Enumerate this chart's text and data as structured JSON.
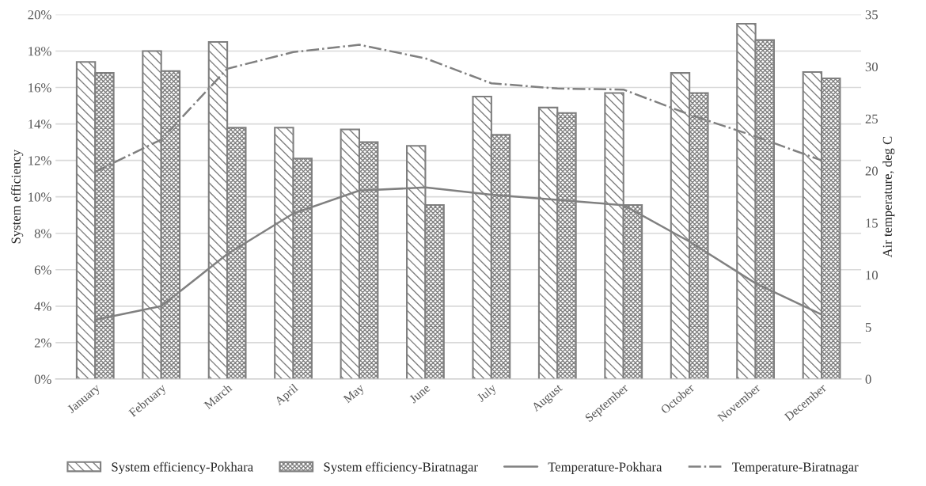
{
  "chart_data": {
    "type": "bar",
    "ylabel": "System efficiency",
    "y2label": "Air temperature, deg C",
    "categories": [
      "January",
      "February",
      "March",
      "April",
      "May",
      "June",
      "July",
      "August",
      "September",
      "October",
      "November",
      "December"
    ],
    "series": [
      {
        "name": "System efficiency-Pokhara",
        "color": "#7f7f7f",
        "values": [
          17.4,
          18.0,
          18.5,
          13.8,
          13.7,
          12.8,
          15.5,
          14.9,
          15.7,
          16.8,
          19.5,
          16.85
        ]
      },
      {
        "name": "System efficiency-Biratnagar",
        "color": "#7f7f7f",
        "values": [
          16.8,
          16.9,
          13.8,
          12.1,
          13.0,
          9.55,
          13.4,
          14.6,
          9.55,
          15.7,
          18.6,
          16.5
        ]
      },
      {
        "name": "Temperature-Pokhara",
        "type": "line",
        "axis": "y2",
        "color": "#808080",
        "line_style": "solid",
        "values": [
          5.7,
          7.0,
          12.0,
          15.9,
          18.1,
          18.4,
          17.7,
          17.2,
          16.7,
          13.2,
          9.2,
          6.2
        ]
      },
      {
        "name": "Temperature-Biratnagar",
        "type": "line",
        "axis": "y2",
        "color": "#808080",
        "line_style": "dashdot",
        "values": [
          19.9,
          23.0,
          29.8,
          31.4,
          32.1,
          30.8,
          28.4,
          27.9,
          27.8,
          25.4,
          23.3,
          21.0
        ]
      }
    ],
    "ylim": [
      0,
      20
    ],
    "yticks": [
      {
        "value": 0,
        "label": "0%"
      },
      {
        "value": 2,
        "label": "2%"
      },
      {
        "value": 4,
        "label": "4%"
      },
      {
        "value": 6,
        "label": "6%"
      },
      {
        "value": 8,
        "label": "8%"
      },
      {
        "value": 10,
        "label": "10%"
      },
      {
        "value": 12,
        "label": "12%"
      },
      {
        "value": 14,
        "label": "14%"
      },
      {
        "value": 16,
        "label": "16%"
      },
      {
        "value": 18,
        "label": "18%"
      },
      {
        "value": 20,
        "label": "20%"
      }
    ],
    "y2lim": [
      0,
      35
    ],
    "y2ticks": [
      0,
      5,
      10,
      15,
      20,
      25,
      30,
      35
    ],
    "grid": "y",
    "legend": "bottom"
  }
}
